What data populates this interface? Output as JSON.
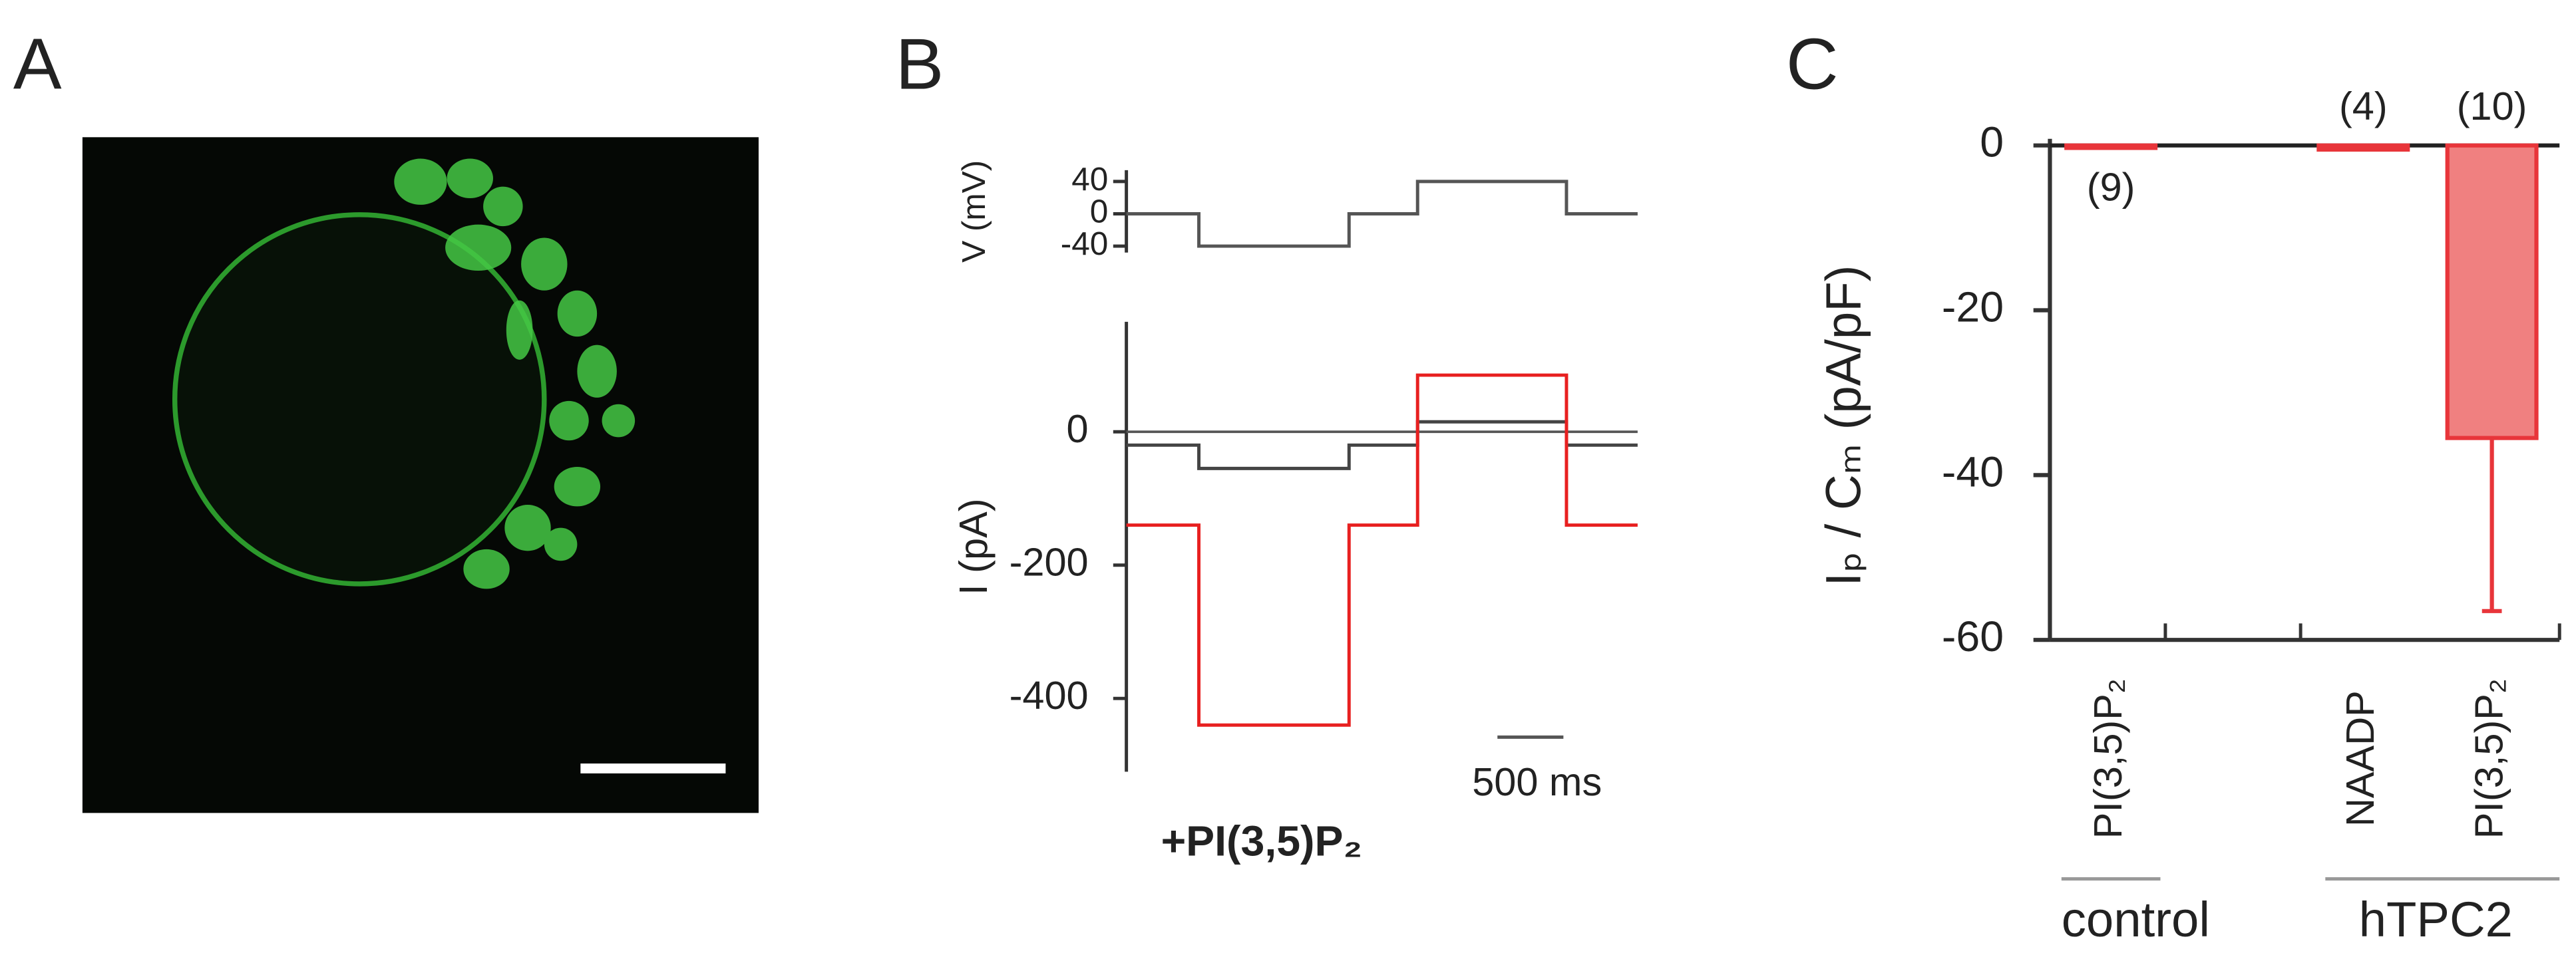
{
  "panel_labels": [
    "A",
    "B",
    "C"
  ],
  "panel_b": {
    "scale_bar_label": "500 ms",
    "treatment_label": "+PI(3,5)P₂"
  },
  "chart_data": [
    {
      "type": "line",
      "ylabel": "V (mV)",
      "xlim": [
        0,
        3880
      ],
      "ylim": [
        -48,
        54
      ],
      "yticks": [
        40,
        0,
        -40
      ],
      "x": [
        0,
        550,
        550,
        1690,
        1690,
        2210,
        2210,
        3340,
        3340,
        3880
      ],
      "series": [
        {
          "color": "#555555",
          "values": [
            0,
            0,
            -40,
            -40,
            0,
            0,
            40,
            40,
            0,
            0
          ]
        }
      ]
    },
    {
      "type": "line",
      "ylabel": "I (pA)",
      "xlim": [
        0,
        3880
      ],
      "ylim": [
        -510,
        165
      ],
      "yticks": [
        0,
        -200,
        -400
      ],
      "x": [
        0,
        550,
        550,
        1690,
        1690,
        2210,
        2210,
        3340,
        3340,
        3880
      ],
      "series": [
        {
          "color": "#444444",
          "values": [
            -20,
            -20,
            -55,
            -55,
            -20,
            -20,
            15,
            15,
            -20,
            -20
          ]
        },
        {
          "color": "#e82020",
          "values": [
            -140,
            -140,
            -440,
            -440,
            -140,
            -140,
            85,
            85,
            -140,
            -140
          ]
        }
      ]
    },
    {
      "type": "bar",
      "ylabel": "Iₚ / Cₘ (pA/pF)",
      "ylim": [
        -60,
        0
      ],
      "yticks": [
        0,
        -20,
        -40,
        -60
      ],
      "categories": [
        "PI(3,5)P₂",
        "NAADP",
        "PI(3,5)P₂"
      ],
      "values": [
        -0.3,
        -0.5,
        -35.5
      ],
      "errors": [
        0,
        0,
        21
      ],
      "n_labels": [
        "(9)",
        "(4)",
        "(10)"
      ],
      "groups": [
        "control",
        "hTPC2"
      ],
      "color": "#f08080",
      "edge_color": "#e8353a"
    }
  ]
}
